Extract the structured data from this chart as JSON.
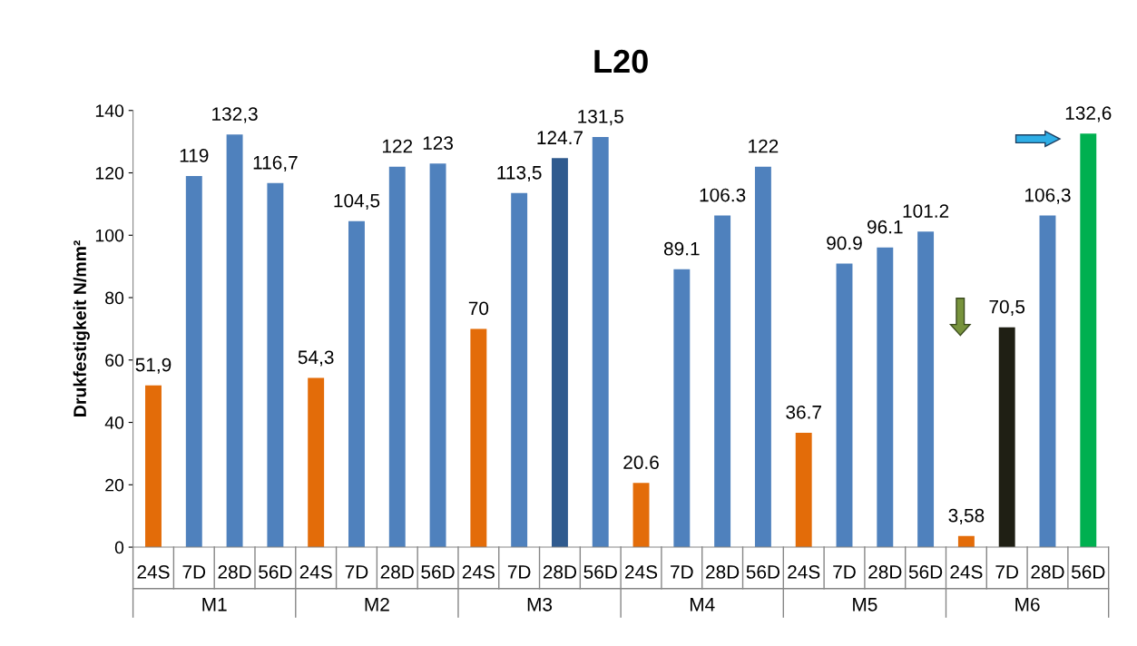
{
  "chart_data": {
    "type": "bar",
    "title": "L20",
    "ylabel": "Drukfestigkeit N/mm²",
    "categories": [
      "24S",
      "7D",
      "28D",
      "56D",
      "24S",
      "7D",
      "28D",
      "56D",
      "24S",
      "7D",
      "28D",
      "56D",
      "24S",
      "7D",
      "28D",
      "56D",
      "24S",
      "7D",
      "28D",
      "56D",
      "24S",
      "7D",
      "28D",
      "56D"
    ],
    "values": [
      51.9,
      119,
      132.3,
      116.7,
      54.3,
      104.5,
      122,
      123,
      70,
      113.5,
      124.7,
      131.5,
      20.6,
      89.1,
      106.3,
      122,
      36.7,
      90.9,
      96.1,
      101.2,
      3.58,
      70.5,
      106.3,
      132.6
    ],
    "colors": [
      "#e36c09",
      "#4f81bd",
      "#4f81bd",
      "#4f81bd",
      "#e36c09",
      "#4f81bd",
      "#4f81bd",
      "#4f81bd",
      "#e36c09",
      "#4f81bd",
      "#2f5a8e",
      "#4f81bd",
      "#e36c09",
      "#4f81bd",
      "#4f81bd",
      "#4f81bd",
      "#e36c09",
      "#4f81bd",
      "#4f81bd",
      "#4f81bd",
      "#e36c09",
      "#1f1f14",
      "#4f81bd",
      "#00b050"
    ],
    "value_labels": [
      "51,9",
      "119",
      "132,3",
      "116,7",
      "54,3",
      "104,5",
      "122",
      "123",
      "70",
      "113,5",
      "124.7",
      "131,5",
      "20.6",
      "89.1",
      "106.3",
      "122",
      "36.7",
      "90.9",
      "96.1",
      "101.2",
      "3,58",
      "70,5",
      "106,3",
      "132,6"
    ],
    "annotations": [
      "M1",
      "M2",
      "M3",
      "M4",
      "M5",
      "M6"
    ],
    "ylim": [
      0,
      140
    ],
    "yticks": [
      0,
      20,
      40,
      60,
      80,
      100,
      120,
      140
    ],
    "grid": false,
    "legend": false
  }
}
